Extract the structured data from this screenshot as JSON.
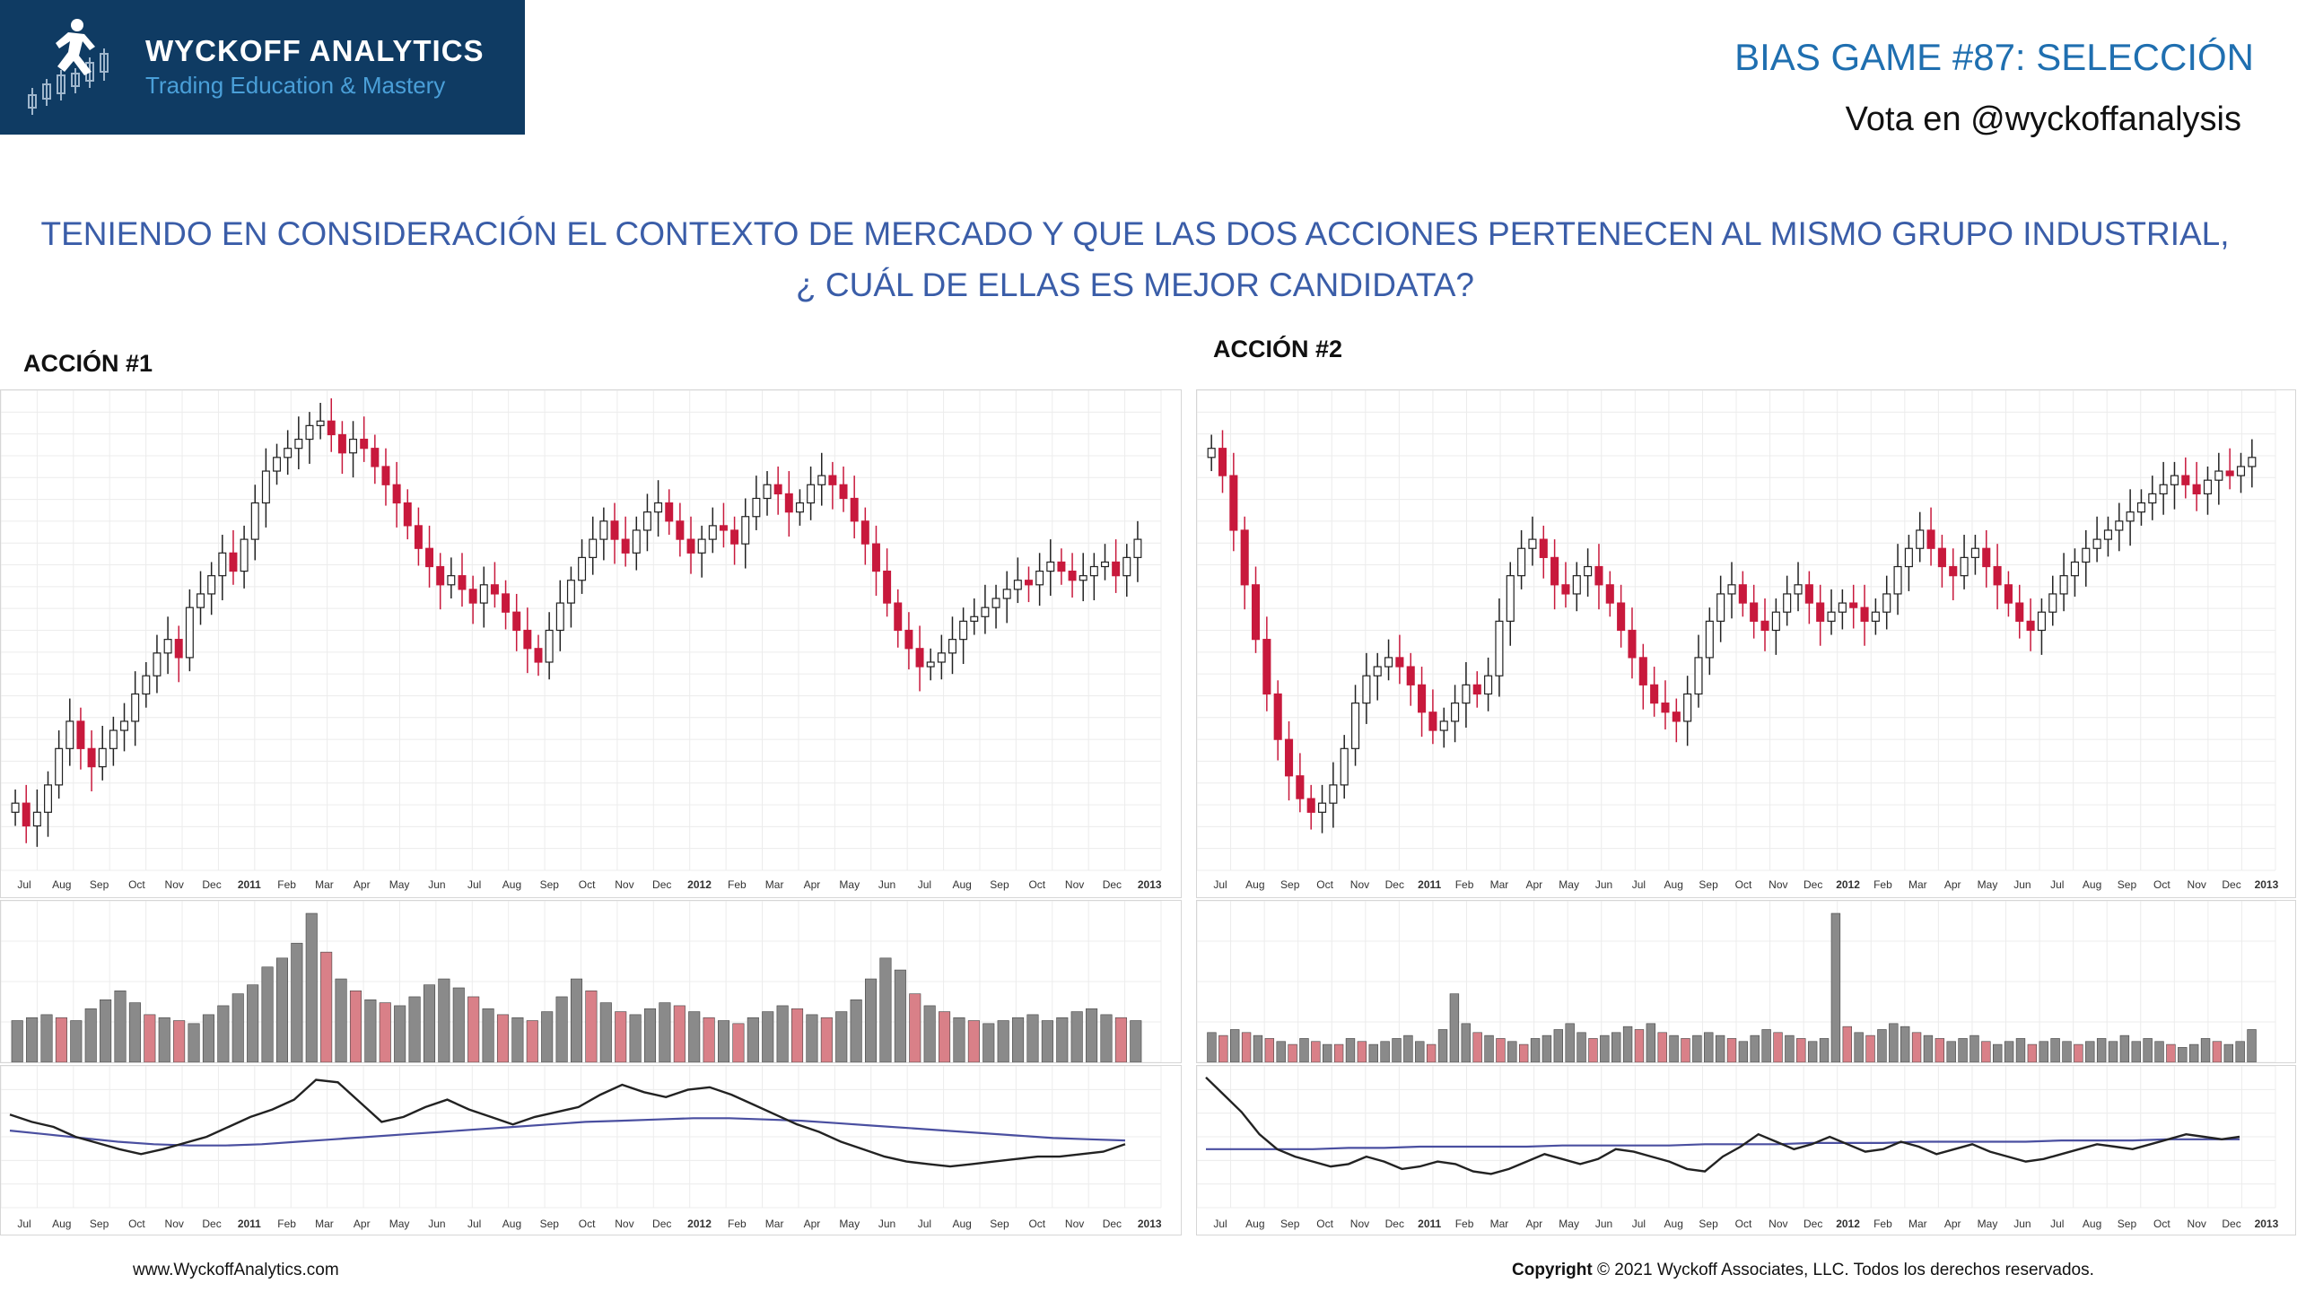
{
  "header": {
    "brand": "WYCKOFF ANALYTICS",
    "tagline": "Trading Education & Mastery",
    "game_title": "BIAS GAME #87: SELECCIÓN",
    "vote": "Vota en @wyckoffanalysis",
    "question_line1": "TENIENDO EN CONSIDERACIÓN EL CONTEXTO DE MERCADO Y QUE LAS DOS ACCIONES PERTENECEN AL MISMO GRUPO INDUSTRIAL,",
    "question_line2": "¿ CUÁL DE ELLAS ES MEJOR CANDIDATA?"
  },
  "footer": {
    "website": "www.WyckoffAnalytics.com",
    "copyright_label": "Copyright",
    "copyright_text": "© 2021 Wyckoff Associates, LLC. Todos los derechos reservados."
  },
  "colors": {
    "brand_bg": "#0f3b63",
    "up_candle": "#ffffff",
    "down_candle": "#c8193c",
    "volume_up": "#8a8a8a",
    "volume_down": "#d98088",
    "indicator_line": "#222222",
    "indicator_average": "#4a4fa0"
  },
  "chart_data": [
    {
      "type": "candlestick",
      "label": "ACCIÓN #1",
      "month_labels": [
        "Jul",
        "Aug",
        "Sep",
        "Oct",
        "Nov",
        "Dec",
        "2011",
        "Feb",
        "Mar",
        "Apr",
        "May",
        "Jun",
        "Jul",
        "Aug",
        "Sep",
        "Oct",
        "Nov",
        "Dec",
        "2012",
        "Feb",
        "Mar",
        "Apr",
        "May",
        "Jun",
        "Jul",
        "Aug",
        "Sep",
        "Oct",
        "Nov",
        "Dec",
        "2013"
      ],
      "close_profile": [
        0.12,
        0.07,
        0.1,
        0.16,
        0.24,
        0.3,
        0.24,
        0.2,
        0.24,
        0.28,
        0.3,
        0.36,
        0.4,
        0.45,
        0.48,
        0.44,
        0.55,
        0.58,
        0.62,
        0.67,
        0.63,
        0.7,
        0.78,
        0.85,
        0.88,
        0.9,
        0.92,
        0.95,
        0.96,
        0.93,
        0.89,
        0.92,
        0.9,
        0.86,
        0.82,
        0.78,
        0.73,
        0.68,
        0.64,
        0.6,
        0.62,
        0.59,
        0.56,
        0.6,
        0.58,
        0.54,
        0.5,
        0.46,
        0.43,
        0.5,
        0.56,
        0.61,
        0.66,
        0.7,
        0.74,
        0.7,
        0.67,
        0.72,
        0.76,
        0.78,
        0.74,
        0.7,
        0.67,
        0.7,
        0.73,
        0.72,
        0.69,
        0.75,
        0.79,
        0.82,
        0.8,
        0.76,
        0.78,
        0.82,
        0.84,
        0.82,
        0.79,
        0.74,
        0.69,
        0.63,
        0.56,
        0.5,
        0.46,
        0.42,
        0.43,
        0.45,
        0.48,
        0.52,
        0.53,
        0.55,
        0.57,
        0.59,
        0.61,
        0.6,
        0.63,
        0.65,
        0.63,
        0.61,
        0.62,
        0.64,
        0.65,
        0.62,
        0.66,
        0.7
      ],
      "volume_profile": [
        0.28,
        0.3,
        0.32,
        0.3,
        0.28,
        0.36,
        0.42,
        0.48,
        0.4,
        0.32,
        0.3,
        0.28,
        0.26,
        0.32,
        0.38,
        0.46,
        0.52,
        0.64,
        0.7,
        0.8,
        1.0,
        0.74,
        0.56,
        0.48,
        0.42,
        0.4,
        0.38,
        0.44,
        0.52,
        0.56,
        0.5,
        0.44,
        0.36,
        0.32,
        0.3,
        0.28,
        0.34,
        0.44,
        0.56,
        0.48,
        0.4,
        0.34,
        0.32,
        0.36,
        0.4,
        0.38,
        0.34,
        0.3,
        0.28,
        0.26,
        0.3,
        0.34,
        0.38,
        0.36,
        0.32,
        0.3,
        0.34,
        0.42,
        0.56,
        0.7,
        0.62,
        0.46,
        0.38,
        0.34,
        0.3,
        0.28,
        0.26,
        0.28,
        0.3,
        0.32,
        0.28,
        0.3,
        0.34,
        0.36,
        0.32,
        0.3,
        0.28
      ],
      "indicator_line": [
        0.68,
        0.62,
        0.58,
        0.5,
        0.45,
        0.4,
        0.36,
        0.4,
        0.45,
        0.5,
        0.58,
        0.66,
        0.72,
        0.8,
        0.96,
        0.94,
        0.78,
        0.62,
        0.66,
        0.74,
        0.8,
        0.72,
        0.66,
        0.6,
        0.66,
        0.7,
        0.74,
        0.84,
        0.92,
        0.86,
        0.82,
        0.88,
        0.9,
        0.84,
        0.76,
        0.68,
        0.6,
        0.54,
        0.46,
        0.4,
        0.34,
        0.3,
        0.28,
        0.26,
        0.28,
        0.3,
        0.32,
        0.34,
        0.34,
        0.36,
        0.38,
        0.44
      ],
      "indicator_average": [
        0.55,
        0.52,
        0.49,
        0.46,
        0.44,
        0.43,
        0.43,
        0.44,
        0.46,
        0.48,
        0.5,
        0.52,
        0.54,
        0.56,
        0.58,
        0.6,
        0.62,
        0.63,
        0.64,
        0.65,
        0.65,
        0.64,
        0.63,
        0.61,
        0.59,
        0.57,
        0.55,
        0.53,
        0.51,
        0.49,
        0.48,
        0.47
      ]
    },
    {
      "type": "candlestick",
      "label": "ACCIÓN #2",
      "month_labels": [
        "Jul",
        "Aug",
        "Sep",
        "Oct",
        "Nov",
        "Dec",
        "2011",
        "Feb",
        "Mar",
        "Apr",
        "May",
        "Jun",
        "Jul",
        "Aug",
        "Sep",
        "Oct",
        "Nov",
        "Dec",
        "2012",
        "Feb",
        "Mar",
        "Apr",
        "May",
        "Jun",
        "Jul",
        "Aug",
        "Sep",
        "Oct",
        "Nov",
        "Dec",
        "2013"
      ],
      "close_profile": [
        0.9,
        0.84,
        0.72,
        0.6,
        0.48,
        0.36,
        0.26,
        0.18,
        0.13,
        0.1,
        0.12,
        0.16,
        0.24,
        0.34,
        0.4,
        0.42,
        0.44,
        0.42,
        0.38,
        0.32,
        0.28,
        0.3,
        0.34,
        0.38,
        0.36,
        0.4,
        0.52,
        0.62,
        0.68,
        0.7,
        0.66,
        0.6,
        0.58,
        0.62,
        0.64,
        0.6,
        0.56,
        0.5,
        0.44,
        0.38,
        0.34,
        0.32,
        0.3,
        0.36,
        0.44,
        0.52,
        0.58,
        0.6,
        0.56,
        0.52,
        0.5,
        0.54,
        0.58,
        0.6,
        0.56,
        0.52,
        0.54,
        0.56,
        0.55,
        0.52,
        0.54,
        0.58,
        0.64,
        0.68,
        0.72,
        0.68,
        0.64,
        0.62,
        0.66,
        0.68,
        0.64,
        0.6,
        0.56,
        0.52,
        0.5,
        0.54,
        0.58,
        0.62,
        0.65,
        0.68,
        0.7,
        0.72,
        0.74,
        0.76,
        0.78,
        0.8,
        0.82,
        0.84,
        0.82,
        0.8,
        0.83,
        0.85,
        0.84,
        0.86,
        0.88
      ],
      "volume_profile": [
        0.2,
        0.18,
        0.22,
        0.2,
        0.18,
        0.16,
        0.14,
        0.12,
        0.16,
        0.14,
        0.12,
        0.12,
        0.16,
        0.14,
        0.12,
        0.14,
        0.16,
        0.18,
        0.14,
        0.12,
        0.22,
        0.46,
        0.26,
        0.2,
        0.18,
        0.16,
        0.14,
        0.12,
        0.16,
        0.18,
        0.22,
        0.26,
        0.2,
        0.16,
        0.18,
        0.2,
        0.24,
        0.22,
        0.26,
        0.2,
        0.18,
        0.16,
        0.18,
        0.2,
        0.18,
        0.16,
        0.14,
        0.18,
        0.22,
        0.2,
        0.18,
        0.16,
        0.14,
        0.16,
        1.0,
        0.24,
        0.2,
        0.18,
        0.22,
        0.26,
        0.24,
        0.2,
        0.18,
        0.16,
        0.14,
        0.16,
        0.18,
        0.14,
        0.12,
        0.14,
        0.16,
        0.12,
        0.14,
        0.16,
        0.14,
        0.12,
        0.14,
        0.16,
        0.14,
        0.18,
        0.14,
        0.16,
        0.14,
        0.12,
        0.1,
        0.12,
        0.16,
        0.14,
        0.12,
        0.14,
        0.22
      ],
      "indicator_line": [
        0.98,
        0.84,
        0.7,
        0.52,
        0.4,
        0.34,
        0.3,
        0.26,
        0.28,
        0.34,
        0.3,
        0.24,
        0.26,
        0.3,
        0.28,
        0.22,
        0.2,
        0.24,
        0.3,
        0.36,
        0.32,
        0.28,
        0.32,
        0.4,
        0.38,
        0.34,
        0.3,
        0.24,
        0.22,
        0.34,
        0.42,
        0.52,
        0.46,
        0.4,
        0.44,
        0.5,
        0.44,
        0.38,
        0.4,
        0.46,
        0.42,
        0.36,
        0.4,
        0.44,
        0.38,
        0.34,
        0.3,
        0.32,
        0.36,
        0.4,
        0.44,
        0.42,
        0.4,
        0.44,
        0.48,
        0.52,
        0.5,
        0.48,
        0.5
      ],
      "indicator_average": [
        0.4,
        0.4,
        0.4,
        0.4,
        0.41,
        0.41,
        0.42,
        0.42,
        0.42,
        0.42,
        0.43,
        0.43,
        0.43,
        0.43,
        0.44,
        0.44,
        0.44,
        0.45,
        0.45,
        0.45,
        0.46,
        0.46,
        0.46,
        0.46,
        0.47,
        0.47,
        0.47,
        0.48,
        0.48,
        0.48
      ]
    }
  ]
}
